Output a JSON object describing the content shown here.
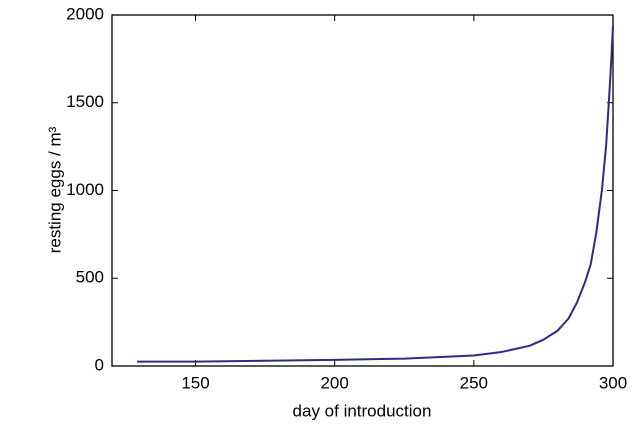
{
  "chart_data": {
    "type": "line",
    "x_label": "day of introduction",
    "y_label": "resting eggs / m³",
    "x": [
      129,
      150,
      175,
      200,
      225,
      250,
      260,
      270,
      275,
      280,
      284,
      287,
      290,
      292,
      294,
      296,
      297.5,
      298.5,
      299.3,
      300
    ],
    "series": [
      {
        "name": "resting eggs",
        "color": "#2b2b8c",
        "values": [
          25,
          25,
          30,
          35,
          42,
          60,
          80,
          115,
          150,
          200,
          270,
          360,
          480,
          580,
          760,
          1000,
          1250,
          1500,
          1720,
          1940
        ]
      }
    ],
    "xlim": [
      120,
      300
    ],
    "xticks": [
      150,
      200,
      250,
      300
    ],
    "ylim": [
      0,
      2000
    ],
    "yticks": [
      0,
      500,
      1000,
      1500,
      2000
    ],
    "grid": false
  }
}
